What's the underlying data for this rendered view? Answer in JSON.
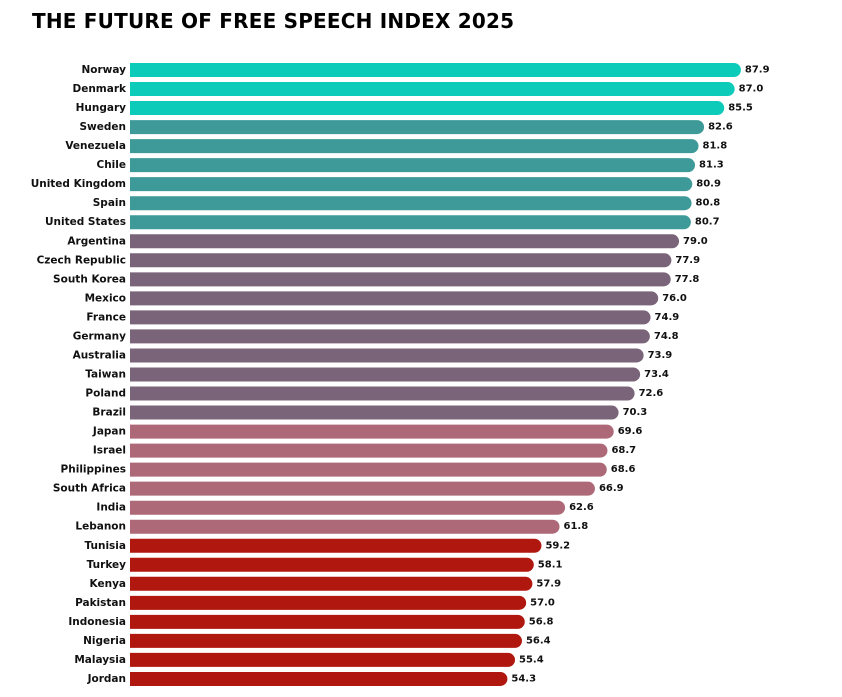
{
  "chart_data": {
    "type": "bar",
    "orientation": "horizontal",
    "title": "THE FUTURE OF FREE SPEECH INDEX 2025",
    "xlabel": "",
    "ylabel": "",
    "xlim": [
      0,
      100
    ],
    "grid": false,
    "legend": "none",
    "categories": [
      "Norway",
      "Denmark",
      "Hungary",
      "Sweden",
      "Venezuela",
      "Chile",
      "United Kingdom",
      "Spain",
      "United States",
      "Argentina",
      "Czech Republic",
      "South Korea",
      "Mexico",
      "France",
      "Germany",
      "Australia",
      "Taiwan",
      "Poland",
      "Brazil",
      "Japan",
      "Israel",
      "Philippines",
      "South Africa",
      "India",
      "Lebanon",
      "Tunisia",
      "Turkey",
      "Kenya",
      "Pakistan",
      "Indonesia",
      "Nigeria",
      "Malaysia",
      "Jordan"
    ],
    "values": [
      87.9,
      87.0,
      85.5,
      82.6,
      81.8,
      81.3,
      80.9,
      80.8,
      80.7,
      79.0,
      77.9,
      77.8,
      76.0,
      74.9,
      74.8,
      73.9,
      73.4,
      72.6,
      70.3,
      69.6,
      68.7,
      68.6,
      66.9,
      62.6,
      61.8,
      59.2,
      58.1,
      57.9,
      57.0,
      56.8,
      56.4,
      55.4,
      54.3
    ],
    "value_labels": [
      "87.9",
      "87.0",
      "85.5",
      "82.6",
      "81.8",
      "81.3",
      "80.9",
      "80.8",
      "80.7",
      "79.0",
      "77.9",
      "77.8",
      "76.0",
      "74.9",
      "74.8",
      "73.9",
      "73.4",
      "72.6",
      "70.3",
      "69.6",
      "68.7",
      "68.6",
      "66.9",
      "62.6",
      "61.8",
      "59.2",
      "58.1",
      "57.9",
      "57.0",
      "56.8",
      "56.4",
      "55.4",
      "54.3"
    ],
    "groups": [
      0,
      0,
      0,
      1,
      1,
      1,
      1,
      1,
      1,
      2,
      2,
      2,
      2,
      2,
      2,
      2,
      2,
      2,
      2,
      3,
      3,
      3,
      3,
      3,
      3,
      4,
      4,
      4,
      4,
      4,
      4,
      4,
      4
    ],
    "group_colors": [
      "#0ccbb8",
      "#3e9a98",
      "#7a6479",
      "#ad6977",
      "#b0170f"
    ]
  }
}
